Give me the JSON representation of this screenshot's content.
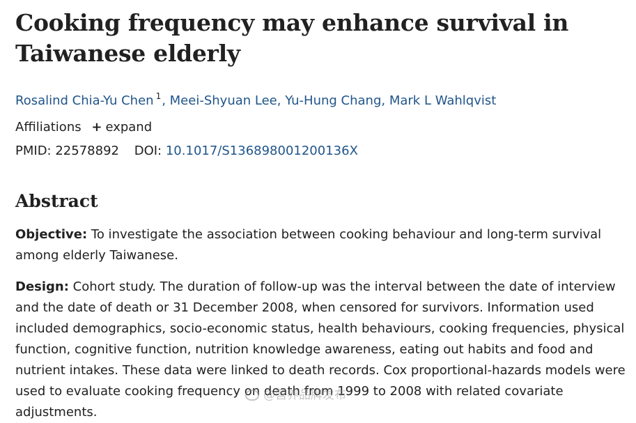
{
  "article": {
    "title": "Cooking frequency may enhance survival in Taiwanese elderly",
    "authors": [
      {
        "name": "Rosalind Chia-Yu Chen",
        "sup": "1"
      },
      {
        "name": "Meei-Shyuan Lee"
      },
      {
        "name": "Yu-Hung Chang"
      },
      {
        "name": "Mark L Wahlqvist"
      }
    ],
    "affiliations_label": "Affiliations",
    "expand_label": "expand",
    "pmid_label": "PMID:",
    "pmid": "22578892",
    "doi_label": "DOI:",
    "doi": "10.1017/S136898001200136X"
  },
  "abstract": {
    "heading": "Abstract",
    "objective_label": "Objective:",
    "objective_text": "To investigate the association between cooking behaviour and long-term survival among elderly Taiwanese.",
    "design_label": "Design:",
    "design_text": "Cohort study. The duration of follow-up was the interval between the date of interview and the date of death or 31 December 2008, when censored for survivors. Information used included demographics, socio-economic status, health behaviours, cooking frequencies, physical function, cognitive function, nutrition knowledge awareness, eating out habits and food and nutrient intakes. These data were linked to death records. Cox proportional-hazards models were used to evaluate cooking frequency on death from 1999 to 2008 with related covariate adjustments."
  },
  "watermark": {
    "icon": "weibo-icon",
    "text": "@营养品牌发布"
  }
}
